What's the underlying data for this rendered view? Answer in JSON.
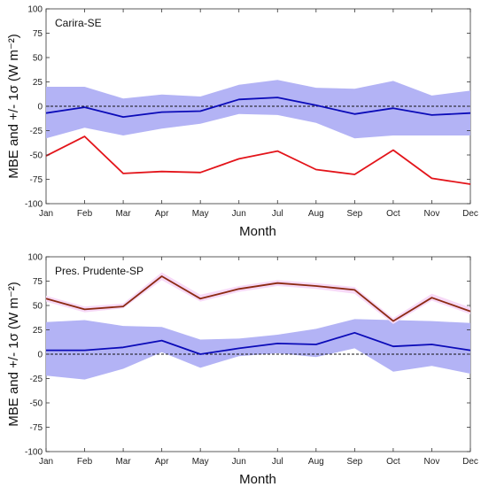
{
  "chart_data": [
    {
      "type": "line",
      "title": "Carira-SE",
      "xlabel": "Month",
      "ylabel": "MBE and +/- 1σ (W m⁻²)",
      "ylim": [
        -100,
        100
      ],
      "yticks": [
        -100,
        -75,
        -50,
        -25,
        0,
        25,
        50,
        75,
        100
      ],
      "categories": [
        "Jan",
        "Feb",
        "Mar",
        "Apr",
        "May",
        "Jun",
        "Jul",
        "Aug",
        "Sep",
        "Oct",
        "Nov",
        "Dec"
      ],
      "series": [
        {
          "role": "band",
          "color": "#b3b3f5",
          "upper": [
            20,
            20,
            8,
            12,
            10,
            22,
            27,
            19,
            18,
            26,
            11,
            16
          ],
          "lower": [
            -33,
            -22,
            -30,
            -23,
            -18,
            -8,
            -9,
            -17,
            -33,
            -30,
            -30,
            -30
          ]
        },
        {
          "role": "line",
          "color": "#0b0bb8",
          "values": [
            -7,
            -1,
            -11,
            -6,
            -5,
            7,
            9,
            1,
            -8,
            -2,
            -9,
            -7
          ]
        },
        {
          "role": "line",
          "color": "#e3141a",
          "values": [
            -51,
            -31,
            -69,
            -67,
            -68,
            -54,
            -46,
            -65,
            -70,
            -45,
            -74,
            -80
          ]
        }
      ]
    },
    {
      "type": "line",
      "title": "Pres. Prudente-SP",
      "xlabel": "Month",
      "ylabel": "MBE and +/- 1σ (W m⁻²)",
      "ylim": [
        -100,
        100
      ],
      "yticks": [
        -100,
        -75,
        -50,
        -25,
        0,
        25,
        50,
        75,
        100
      ],
      "categories": [
        "Jan",
        "Feb",
        "Mar",
        "Apr",
        "May",
        "Jun",
        "Jul",
        "Aug",
        "Sep",
        "Oct",
        "Nov",
        "Dec"
      ],
      "series": [
        {
          "role": "band",
          "color": "#b3b3f5",
          "upper": [
            33,
            35,
            29,
            28,
            15,
            16,
            20,
            26,
            36,
            35,
            34,
            32
          ],
          "lower": [
            -22,
            -26,
            -15,
            2,
            -14,
            -2,
            1,
            -3,
            6,
            -18,
            -12,
            -20
          ]
        },
        {
          "role": "band",
          "color": "#f7d9f7",
          "upper": [
            60,
            49,
            52,
            84,
            61,
            70,
            76,
            73,
            69,
            37,
            62,
            48
          ],
          "lower": [
            54,
            43,
            47,
            76,
            54,
            64,
            70,
            67,
            62,
            31,
            55,
            41
          ]
        },
        {
          "role": "line",
          "color": "#0b0bb8",
          "values": [
            4,
            4,
            7,
            14,
            0,
            6,
            11,
            10,
            22,
            8,
            10,
            4
          ]
        },
        {
          "role": "line",
          "color": "#8c2a12",
          "values": [
            57,
            46,
            49,
            80,
            57,
            67,
            73,
            70,
            66,
            34,
            58,
            44
          ]
        }
      ]
    }
  ]
}
